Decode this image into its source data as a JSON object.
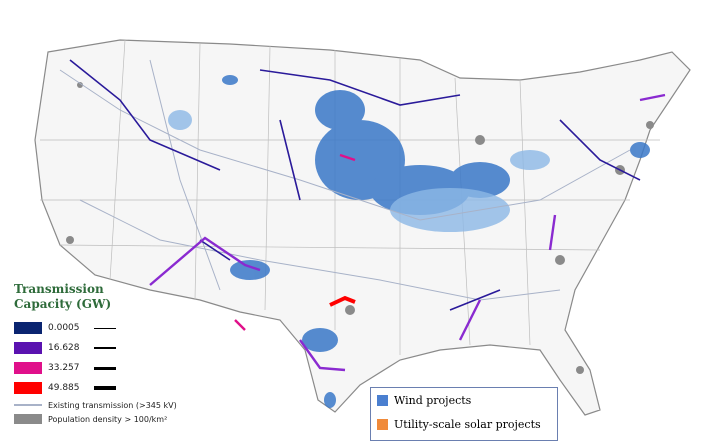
{
  "legend": {
    "title": "Transmission Capacity (GW)",
    "capacity": [
      {
        "value": 0.0005,
        "color": "#0a2470"
      },
      {
        "value": 16.628,
        "color": "#5a12b0"
      },
      {
        "value": 33.257,
        "color": "#e0108a"
      },
      {
        "value": 49.885,
        "color": "#ff0000"
      }
    ],
    "existing": "Existing transmission (>345 kV)",
    "population": "Population density > 100/km²"
  },
  "inset_legend": {
    "items": [
      {
        "label": "Wind projects",
        "color": "#4a7fd0"
      },
      {
        "label": "Utility-scale solar projects",
        "color": "#f08a3a"
      }
    ]
  }
}
